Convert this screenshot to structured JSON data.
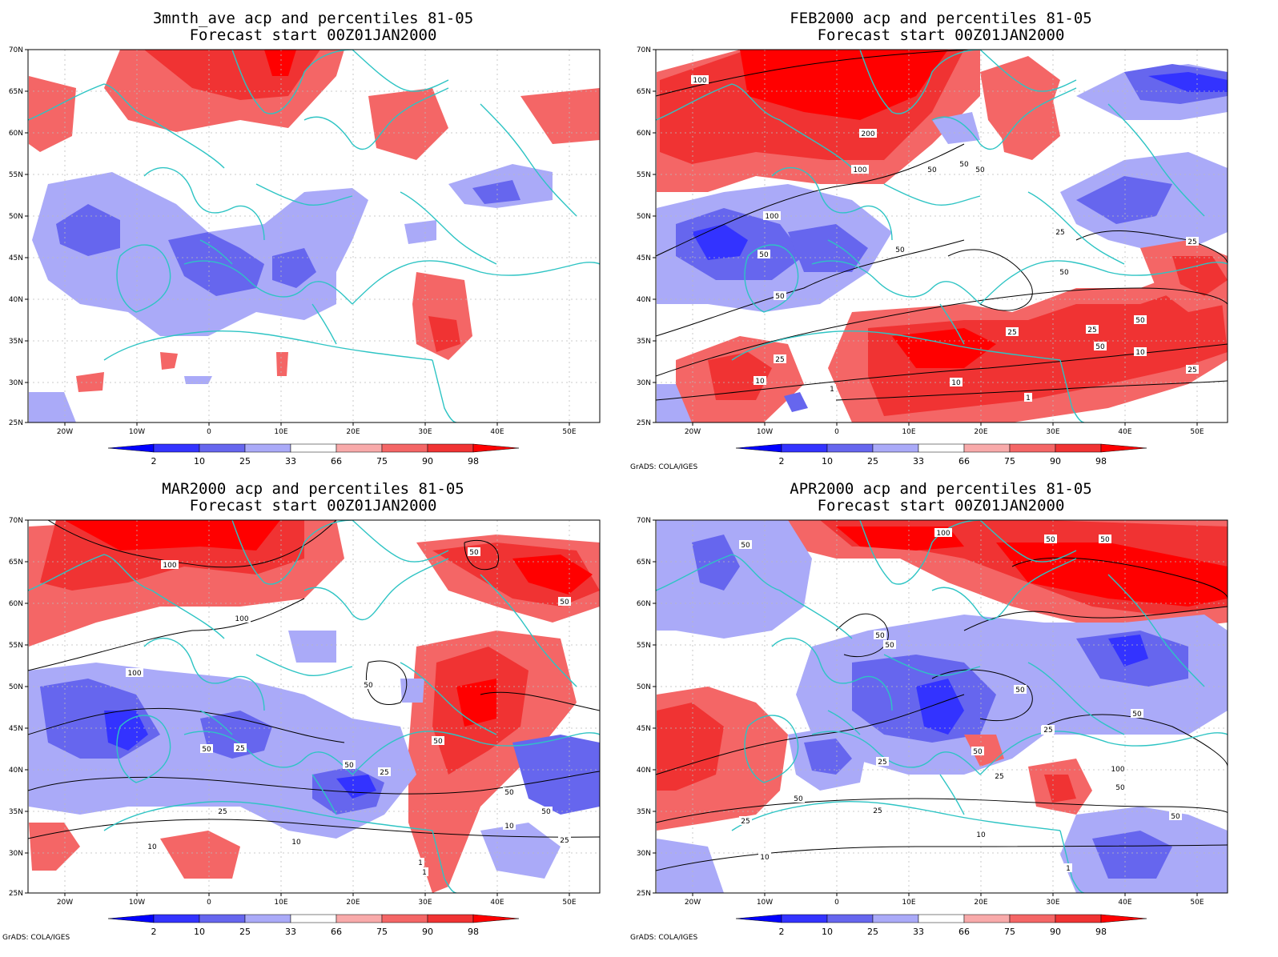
{
  "credit": "GrADS: COLA/IGES",
  "lat_ticks": [
    "70N",
    "65N",
    "60N",
    "55N",
    "50N",
    "45N",
    "40N",
    "35N",
    "30N",
    "25N"
  ],
  "lon_ticks": [
    "20W",
    "10W",
    "0",
    "10E",
    "20E",
    "30E",
    "40E",
    "50E"
  ],
  "colorbar": {
    "labels": [
      "2",
      "10",
      "25",
      "33",
      "66",
      "75",
      "90",
      "98"
    ],
    "colors": [
      "#0000ff",
      "#3333ff",
      "#6666ee",
      "#aaaaf8",
      "#ffffff",
      "#f8aaaa",
      "#f46666",
      "#f03333",
      "#ff0000"
    ]
  },
  "colors": {
    "coast": "#2ec4c4",
    "contour": "#000000",
    "grid": "#bbbbbb"
  },
  "panels": [
    {
      "title_line1": "3mnth_ave acp and percentiles 81-05",
      "title_line2": "Forecast start 00Z01JAN2000",
      "show_credit": false,
      "contour_labels": []
    },
    {
      "title_line1": "FEB2000 acp and percentiles 81-05",
      "title_line2": "Forecast start 00Z01JAN2000",
      "show_credit": true,
      "contour_labels": [
        "100",
        "200",
        "100",
        "100",
        "50",
        "50",
        "50",
        "50",
        "25",
        "25",
        "50",
        "50",
        "25",
        "50",
        "25",
        "10",
        "10",
        "1",
        "10",
        "25",
        "50",
        "25",
        "50",
        "1"
      ]
    },
    {
      "title_line1": "MAR2000 acp and percentiles 81-05",
      "title_line2": "Forecast start 00Z01JAN2000",
      "show_credit": true,
      "contour_labels": [
        "100",
        "100",
        "100",
        "50",
        "50",
        "50",
        "50",
        "25",
        "50",
        "25",
        "50",
        "25",
        "10",
        "10",
        "10",
        "1",
        "50",
        "25",
        "50",
        "1"
      ]
    },
    {
      "title_line1": "APR2000 acp and percentiles 81-05",
      "title_line2": "Forecast start 00Z01JAN2000",
      "show_credit": true,
      "contour_labels": [
        "100",
        "50",
        "50",
        "50",
        "50",
        "50",
        "50",
        "50",
        "25",
        "25",
        "50",
        "25",
        "100",
        "50",
        "25",
        "50",
        "10",
        "25",
        "25",
        "50",
        "10",
        "1"
      ]
    }
  ]
}
